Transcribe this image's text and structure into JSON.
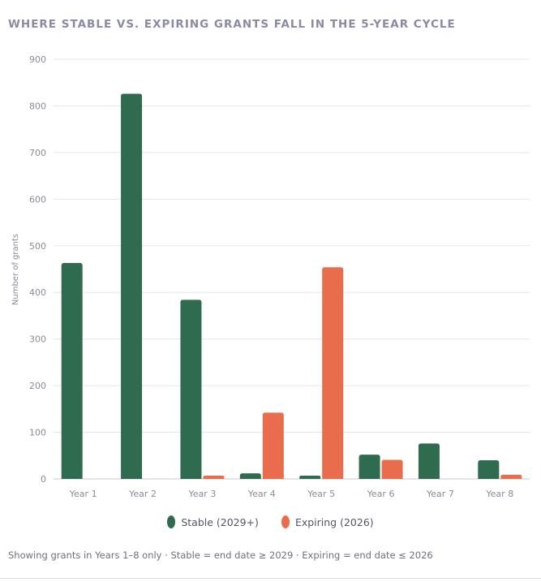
{
  "title": "WHERE STABLE VS. EXPIRING GRANTS FALL IN THE 5-YEAR CYCLE",
  "footnote": "Showing grants in Years 1–8 only · Stable = end date ≥ 2029 · Expiring = end date ≤ 2026",
  "chart_data": {
    "type": "bar",
    "title": "WHERE STABLE VS. EXPIRING GRANTS FALL IN THE 5-YEAR CYCLE",
    "xlabel": "",
    "ylabel": "Number of grants",
    "ylim": [
      0,
      900
    ],
    "yticks": [
      0,
      100,
      200,
      300,
      400,
      500,
      600,
      700,
      800,
      900
    ],
    "grid": true,
    "legend_position": "bottom-center",
    "categories": [
      "Year 1",
      "Year 2",
      "Year 3",
      "Year 4",
      "Year 5",
      "Year 6",
      "Year 7",
      "Year 8"
    ],
    "series": [
      {
        "name": "Stable (2029+)",
        "color": "#2f6b4f",
        "values": [
          463,
          826,
          384,
          12,
          7,
          52,
          76,
          40
        ]
      },
      {
        "name": "Expiring (2026)",
        "color": "#e96d4d",
        "values": [
          0,
          0,
          7,
          142,
          454,
          41,
          0,
          9
        ]
      }
    ]
  }
}
